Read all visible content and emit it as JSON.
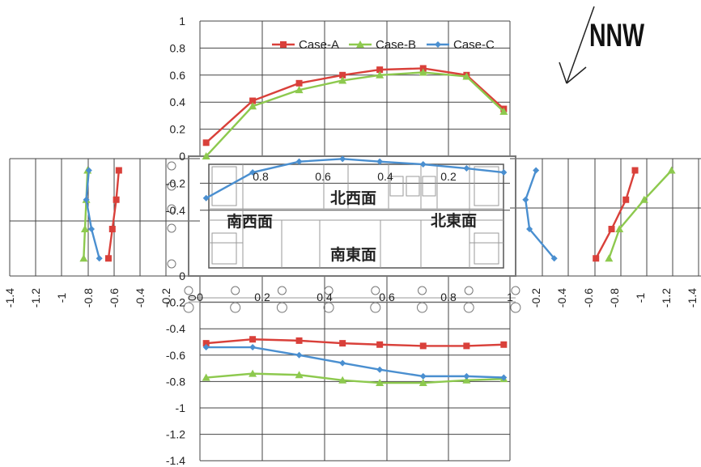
{
  "wind_direction": "NNW",
  "colors": {
    "Case-A": "#d9403a",
    "Case-B": "#8dc94e",
    "Case-C": "#4a8fd0",
    "grid": "#444444",
    "plan": "#9a9a9a"
  },
  "face_labels": {
    "northwest": "北西面",
    "southwest": "南西面",
    "northeast": "北東面",
    "southeast": "南東面"
  },
  "legend": [
    "Case-A",
    "Case-B",
    "Case-C"
  ],
  "chart_data": [
    {
      "type": "line",
      "panel": "北西面",
      "x": [
        0.02,
        0.17,
        0.32,
        0.46,
        0.58,
        0.72,
        0.86,
        0.98
      ],
      "series": [
        {
          "name": "Case-A",
          "values": [
            0.1,
            0.41,
            0.54,
            0.6,
            0.64,
            0.65,
            0.6,
            0.35
          ]
        },
        {
          "name": "Case-B",
          "values": [
            0.0,
            0.37,
            0.49,
            0.56,
            0.6,
            0.62,
            0.59,
            0.33
          ]
        },
        {
          "name": "Case-C",
          "values": [
            -0.31,
            -0.12,
            -0.04,
            -0.02,
            -0.04,
            -0.06,
            -0.09,
            -0.12
          ]
        }
      ],
      "yticks": [
        "1",
        "0.8",
        "0.6",
        "0.4",
        "0.2",
        "0",
        "-0.2",
        "-0.4"
      ],
      "xticks": [
        "0.8",
        "0.6",
        "0.4",
        "0.2"
      ],
      "ylim": [
        -0.4,
        1
      ]
    },
    {
      "type": "line",
      "panel": "南東面",
      "x": [
        0.02,
        0.17,
        0.32,
        0.46,
        0.58,
        0.72,
        0.86,
        0.98
      ],
      "series": [
        {
          "name": "Case-A",
          "values": [
            -0.51,
            -0.48,
            -0.49,
            -0.51,
            -0.52,
            -0.53,
            -0.53,
            -0.52
          ]
        },
        {
          "name": "Case-B",
          "values": [
            -0.77,
            -0.74,
            -0.75,
            -0.79,
            -0.81,
            -0.81,
            -0.79,
            -0.78
          ]
        },
        {
          "name": "Case-C",
          "values": [
            -0.54,
            -0.54,
            -0.6,
            -0.66,
            -0.71,
            -0.76,
            -0.76,
            -0.77
          ]
        }
      ],
      "yticks": [
        "0",
        "-0.2",
        "-0.4",
        "-0.6",
        "-0.8",
        "-1",
        "-1.2",
        "-1.4"
      ],
      "xticks": [
        "0",
        "0.2",
        "0.4",
        "0.6",
        "0.8",
        "1"
      ],
      "ylim": [
        -1.4,
        0
      ]
    },
    {
      "type": "line",
      "panel": "南西面",
      "y": [
        0.1,
        0.35,
        0.6,
        0.85
      ],
      "series": [
        {
          "name": "Case-A",
          "values": [
            -0.56,
            -0.58,
            -0.61,
            -0.64
          ]
        },
        {
          "name": "Case-B",
          "values": [
            -0.8,
            -0.81,
            -0.82,
            -0.83
          ]
        },
        {
          "name": "Case-C",
          "values": [
            -0.79,
            -0.81,
            -0.77,
            -0.71
          ]
        }
      ],
      "xticks": [
        "-1.4",
        "-1.2",
        "-1",
        "-0.8",
        "-0.6",
        "-0.4",
        "-0.2",
        "0"
      ]
    },
    {
      "type": "line",
      "panel": "北東面",
      "y": [
        0.1,
        0.35,
        0.6,
        0.85
      ],
      "series": [
        {
          "name": "Case-A",
          "values": [
            -0.91,
            -0.84,
            -0.73,
            -0.61
          ]
        },
        {
          "name": "Case-B",
          "values": [
            -1.19,
            -0.98,
            -0.79,
            -0.71
          ]
        },
        {
          "name": "Case-C",
          "values": [
            -0.15,
            -0.07,
            -0.1,
            -0.29
          ]
        }
      ],
      "xticks": [
        "-0.2",
        "-0.4",
        "-0.6",
        "-0.8",
        "-1",
        "-1.2",
        "-1.4"
      ]
    }
  ]
}
